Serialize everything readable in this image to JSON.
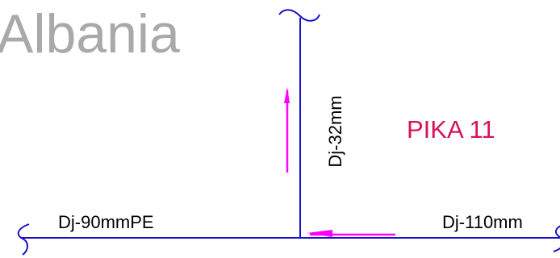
{
  "watermark": "Albania",
  "point_label": "PIKA 11",
  "pipes": {
    "left": "Dj-90mmPE",
    "right": "Dj-110mm",
    "vertical": "Dj-32mm"
  },
  "colors": {
    "pipe_line": "#1a12c8",
    "flow_arrow": "#ff00ff",
    "point_label": "#d4145a",
    "watermark": "#a9a9a9",
    "text": "#000000"
  }
}
